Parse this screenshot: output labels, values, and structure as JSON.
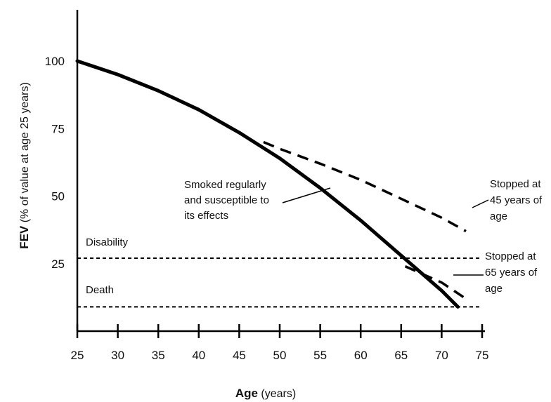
{
  "chart_data": {
    "type": "line",
    "title": "",
    "xlabel": {
      "bold": "Age",
      "rest": " (years)"
    },
    "ylabel": {
      "bold": "FEV",
      "rest": " (% of value at age 25 years)"
    },
    "xlim": [
      25,
      75
    ],
    "ylim": [
      0,
      100
    ],
    "x_ticks": [
      "25",
      "30",
      "35",
      "40",
      "45",
      "50",
      "55",
      "60",
      "65",
      "70",
      "75"
    ],
    "y_ticks": [
      "100",
      "75",
      "50",
      "25"
    ],
    "grid": false,
    "series": [
      {
        "style": "solid",
        "x": [
          25,
          30,
          35,
          40,
          45,
          50,
          55,
          60,
          65,
          70,
          72
        ],
        "y": [
          100,
          95,
          89,
          82,
          73.5,
          64,
          53,
          41,
          28,
          15,
          9
        ]
      },
      {
        "style": "dashed",
        "x": [
          48,
          50,
          55,
          60,
          65,
          70,
          73
        ],
        "y": [
          70,
          67.5,
          62,
          56,
          49,
          42,
          37
        ]
      },
      {
        "style": "dashed",
        "x": [
          65.5,
          70,
          73
        ],
        "y": [
          24,
          18,
          12
        ]
      }
    ],
    "reference_lines": [
      {
        "label": "Disability",
        "y": 27
      },
      {
        "label": "Death",
        "y": 9
      }
    ],
    "annotations": [
      {
        "lines": [
          "Smoked regularly",
          "and susceptible to",
          "its effects"
        ]
      },
      {
        "lines": [
          "Stopped at",
          "45 years of",
          "age"
        ]
      },
      {
        "lines": [
          "Stopped at",
          "65 years of",
          "age"
        ]
      }
    ]
  }
}
